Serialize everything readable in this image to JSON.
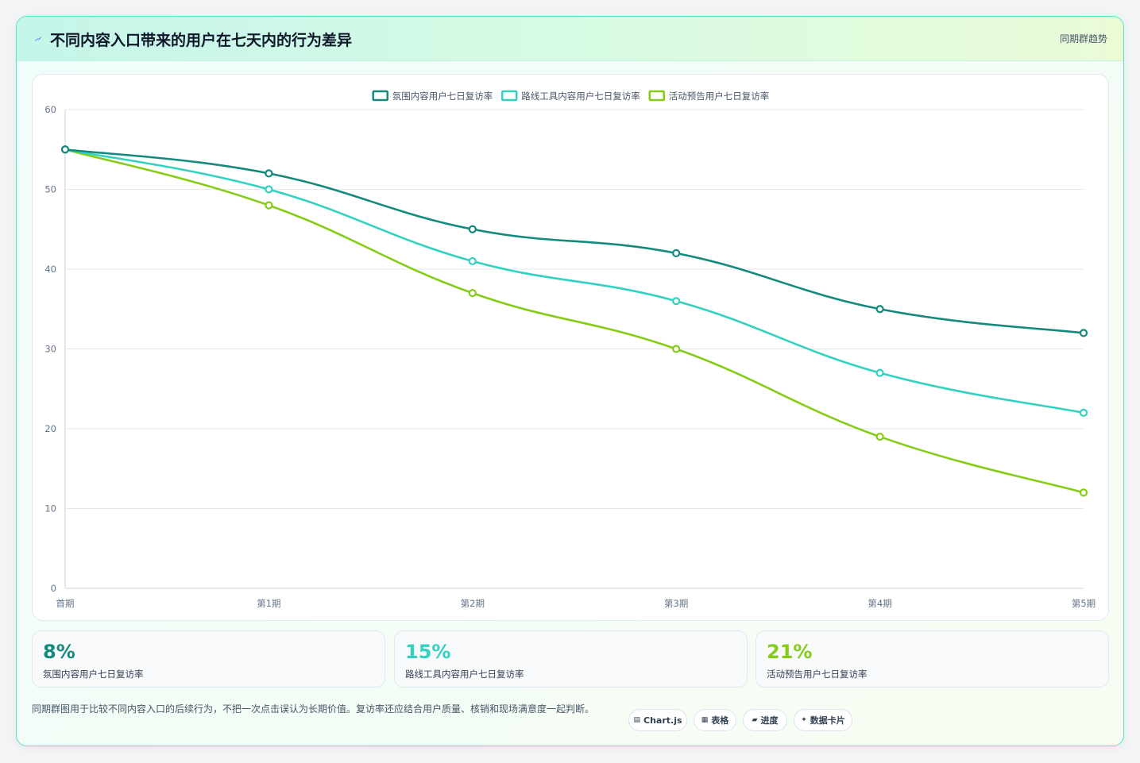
{
  "header": {
    "title": "不同内容入口带来的用户在七天内的行为差异",
    "tag": "同期群趋势"
  },
  "colors": {
    "series1": "#138a7c",
    "series2": "#33d1c0",
    "series3": "#84cc16"
  },
  "chart_data": {
    "type": "line",
    "categories": [
      "首期",
      "第1期",
      "第2期",
      "第3期",
      "第4期",
      "第5期"
    ],
    "series": [
      {
        "name": "氛围内容用户七日复访率",
        "values": [
          55,
          52,
          45,
          42,
          35,
          32
        ]
      },
      {
        "name": "路线工具内容用户七日复访率",
        "values": [
          55,
          50,
          41,
          36,
          27,
          22
        ]
      },
      {
        "name": "活动预告用户七日复访率",
        "values": [
          55,
          48,
          37,
          30,
          19,
          12
        ]
      }
    ],
    "yticks": [
      "0",
      "10",
      "20",
      "30",
      "40",
      "50",
      "60"
    ],
    "ylim": [
      0,
      60
    ],
    "grid": true,
    "legend": "top-center",
    "smooth": true
  },
  "kpis": [
    {
      "value": "8%",
      "label": "氛围内容用户七日复访率"
    },
    {
      "value": "15%",
      "label": "路线工具内容用户七日复访率"
    },
    {
      "value": "21%",
      "label": "活动预告用户七日复访率"
    }
  ],
  "note": "同期群图用于比较不同内容入口的后续行为，不把一次点击误认为长期价值。复访率还应结合用户质量、核销和现场满意度一起判断。",
  "chips": [
    {
      "icon": "▤",
      "label": "Chart.js"
    },
    {
      "icon": "▦",
      "label": "表格"
    },
    {
      "icon": "▰",
      "label": "进度"
    },
    {
      "icon": "✦",
      "label": "数据卡片"
    }
  ]
}
